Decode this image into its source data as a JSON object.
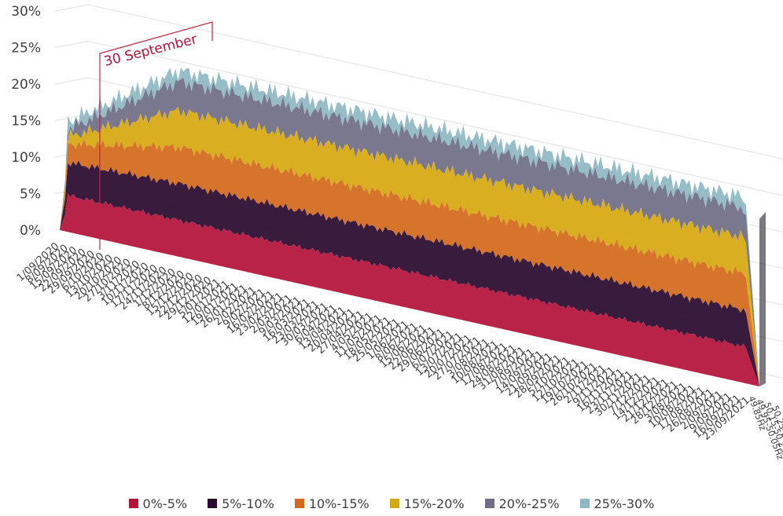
{
  "chart_data": {
    "type": "area",
    "title": "",
    "xlabel": "",
    "ylabel": "",
    "ylim": [
      0,
      30
    ],
    "y_ticks": [
      "30%",
      "25%",
      "20%",
      "15%",
      "10%",
      "5%",
      "0%"
    ],
    "x_ticks": [
      "1/09/2020",
      "8/09/2020",
      "15/09/2020",
      "22/09/2020",
      "29/09/2020",
      "6/10/2020",
      "13/10/2020",
      "20/10/2020",
      "27/10/2020",
      "3/11/2020",
      "10/11/2020",
      "17/11/2020",
      "24/11/2020",
      "1/12/2020",
      "8/12/2020",
      "15/12/2020",
      "22/12/2020",
      "29/12/2020",
      "5/01/2021",
      "12/01/2021",
      "19/01/2021",
      "26/01/2021",
      "2/02/2021",
      "9/02/2021",
      "16/02/2021",
      "23/02/2021",
      "2/03/2021",
      "9/03/2021",
      "16/03/2021",
      "23/03/2021",
      "30/03/2021",
      "6/04/2021",
      "13/04/2021",
      "20/04/2021",
      "27/04/2021",
      "4/05/2021",
      "11/05/2021",
      "18/05/2021",
      "25/05/2021",
      "1/06/2021",
      "8/06/2021",
      "15/06/2021",
      "22/06/2021",
      "29/06/2021",
      "6/07/2021",
      "13/07/2021",
      "20/07/2021",
      "27/07/2021",
      "3/08/2021",
      "10/08/2021",
      "17/08/2021",
      "24/08/2021",
      "31/08/2021",
      "7/09/2021",
      "14/09/2021",
      "21/09/2021",
      "28/09/2021",
      "5/10/2021",
      "12/10/2021",
      "19/10/2021",
      "26/10/2021",
      "2/11/2021",
      "9/11/2021",
      "16/11/2021",
      "23/11/2021",
      "30/11/2021",
      "7/12/2021",
      "14/12/2021",
      "21/12/2021",
      "28/12/2021",
      "3/08/2021",
      "10/08/2021",
      "17/08/2021",
      "26/08/2021",
      "2/09/2021",
      "9/09/2021",
      "16/09/2021",
      "23/09/2021"
    ],
    "depth_labels": [
      "49.85Hz",
      "49.95-50.05Hz",
      "50.15-50.25Hz",
      "50.25-50.35Hz"
    ],
    "annotation": "30 September",
    "series": [
      {
        "name": "0%-5%",
        "color": "#b5123a",
        "early": 5,
        "late": 5
      },
      {
        "name": "5%-10%",
        "color": "#2a0a2e",
        "early": 9.5,
        "late": 10
      },
      {
        "name": "10%-15%",
        "color": "#d4691c",
        "early": 12,
        "late": 15
      },
      {
        "name": "15%-20%",
        "color": "#d6a80f",
        "early": 13,
        "late": 20
      },
      {
        "name": "20%-25%",
        "color": "#6f6e86",
        "early": 14,
        "late": 24
      },
      {
        "name": "25%-30%",
        "color": "#8fb8c4",
        "early": 15,
        "late": 25.5
      }
    ]
  },
  "legend": [
    {
      "label": "0%-5%",
      "color": "#b5123a"
    },
    {
      "label": "5%-10%",
      "color": "#2a0a2e"
    },
    {
      "label": "10%-15%",
      "color": "#d4691c"
    },
    {
      "label": "15%-20%",
      "color": "#d6a80f"
    },
    {
      "label": "20%-25%",
      "color": "#6f6e86"
    },
    {
      "label": "25%-30%",
      "color": "#8fb8c4"
    }
  ]
}
